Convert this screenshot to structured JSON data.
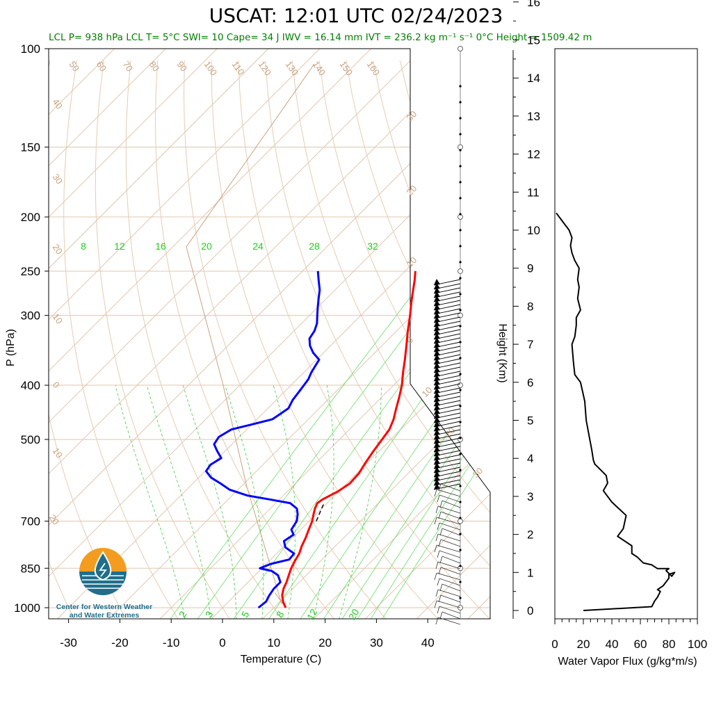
{
  "title": "USCAT: 12:01 UTC 02/24/2023",
  "stats_line": "LCL P= 938 hPa  LCL T= 5°C  SWI= 10  Cape= 34 J  IWV = 16.14 mm  IVT = 236.2 kg m⁻¹ s⁻¹  0°C Height = 1509.42 m",
  "logo": {
    "icon": "water-drop-sun-icon",
    "text_line1": "Center for Western Weather",
    "text_line2": "and Water Extremes",
    "colors": {
      "sun": "#f39c1f",
      "water": "#1f6f8b"
    }
  },
  "chart_data": [
    {
      "type": "skew-t",
      "title": "USCAT: 12:01 UTC 02/24/2023",
      "xlabel": "Temperature (C)",
      "ylabel": "P (hPa)",
      "ylabel_right": "Height (Km)",
      "x_ticks": [
        "-30",
        "-20",
        "-10",
        "0",
        "10",
        "20",
        "30",
        "40"
      ],
      "pressure_ticks": [
        "100",
        "150",
        "200",
        "250",
        "300",
        "400",
        "500",
        "700",
        "850",
        "1000"
      ],
      "height_ticks": [
        "0",
        "1",
        "2",
        "3",
        "4",
        "5",
        "6",
        "7",
        "8",
        "9",
        "10",
        "11",
        "12",
        "13",
        "14",
        "15",
        "16"
      ],
      "mixing_ratio_labels_top": [
        "8",
        "12",
        "16",
        "20",
        "24",
        "28",
        "32"
      ],
      "mixing_ratio_labels_bottom": [
        "2",
        "3",
        "5",
        "8",
        "12",
        "20"
      ],
      "dry_adiabat_labels": [
        "50",
        "60",
        "70",
        "80",
        "90",
        "100",
        "110",
        "120",
        "130",
        "140",
        "150",
        "160"
      ],
      "isotherm_labels_left": [
        "40",
        "30",
        "20",
        "10",
        "0",
        "10",
        "20"
      ],
      "isotherm_labels_right": [
        "30",
        "20",
        "10",
        "0",
        "10",
        "20",
        "30"
      ],
      "colors": {
        "temperature": "#ff0000",
        "dewpoint": "#0000ff",
        "parcel": "#000000",
        "isotherm": "#d8b89a",
        "moist": "#22cc22"
      },
      "temperature_series": {
        "name": "Temperature",
        "points": [
          [
            1000,
            12.3
          ],
          [
            975,
            10.6
          ],
          [
            950,
            9.2
          ],
          [
            925,
            8.2
          ],
          [
            900,
            7.5
          ],
          [
            875,
            6.6
          ],
          [
            850,
            5.7
          ],
          [
            825,
            5.0
          ],
          [
            800,
            4.4
          ],
          [
            775,
            3.4
          ],
          [
            750,
            2.6
          ],
          [
            725,
            1.6
          ],
          [
            700,
            0.6
          ],
          [
            680,
            -0.5
          ],
          [
            665,
            -1.3
          ],
          [
            650,
            -1.9
          ],
          [
            640,
            -1.6
          ],
          [
            620,
            -0.2
          ],
          [
            600,
            0.6
          ],
          [
            575,
            0.4
          ],
          [
            550,
            -0.4
          ],
          [
            525,
            -1.1
          ],
          [
            500,
            -1.7
          ],
          [
            480,
            -2.2
          ],
          [
            460,
            -3.4
          ],
          [
            440,
            -5.0
          ],
          [
            420,
            -6.6
          ],
          [
            400,
            -8.4
          ],
          [
            380,
            -10.6
          ],
          [
            360,
            -12.8
          ],
          [
            340,
            -15.2
          ],
          [
            320,
            -17.8
          ],
          [
            300,
            -20.4
          ],
          [
            285,
            -22.6
          ],
          [
            270,
            -24.8
          ],
          [
            260,
            -26.3
          ],
          [
            250,
            -28.0
          ]
        ]
      },
      "dewpoint_series": {
        "name": "Dewpoint",
        "points": [
          [
            1000,
            7.0
          ],
          [
            975,
            7.3
          ],
          [
            950,
            6.7
          ],
          [
            925,
            6.3
          ],
          [
            900,
            6.3
          ],
          [
            875,
            4.5
          ],
          [
            860,
            2.5
          ],
          [
            850,
            -0.4
          ],
          [
            835,
            0.9
          ],
          [
            820,
            3.6
          ],
          [
            800,
            3.4
          ],
          [
            780,
            0.5
          ],
          [
            760,
            -1.0
          ],
          [
            740,
            -0.4
          ],
          [
            725,
            -1.8
          ],
          [
            700,
            -2.4
          ],
          [
            680,
            -3.6
          ],
          [
            665,
            -4.8
          ],
          [
            650,
            -7.2
          ],
          [
            640,
            -12.0
          ],
          [
            630,
            -17.0
          ],
          [
            615,
            -21.6
          ],
          [
            600,
            -24.5
          ],
          [
            585,
            -27.6
          ],
          [
            570,
            -29.8
          ],
          [
            555,
            -30.2
          ],
          [
            540,
            -29.4
          ],
          [
            525,
            -31.5
          ],
          [
            510,
            -33.5
          ],
          [
            495,
            -34.0
          ],
          [
            480,
            -33.0
          ],
          [
            470,
            -30.0
          ],
          [
            460,
            -27.0
          ],
          [
            450,
            -26.5
          ],
          [
            440,
            -26.0
          ],
          [
            425,
            -26.8
          ],
          [
            410,
            -27.2
          ],
          [
            400,
            -27.5
          ],
          [
            390,
            -27.8
          ],
          [
            380,
            -28.5
          ],
          [
            370,
            -29.0
          ],
          [
            360,
            -29.5
          ],
          [
            350,
            -32.0
          ],
          [
            340,
            -34.0
          ],
          [
            330,
            -35.5
          ],
          [
            320,
            -36.0
          ],
          [
            310,
            -37.0
          ],
          [
            300,
            -38.5
          ],
          [
            290,
            -40.0
          ],
          [
            280,
            -41.5
          ],
          [
            270,
            -43.0
          ],
          [
            260,
            -45.0
          ],
          [
            250,
            -47.0
          ]
        ]
      },
      "parcel_series": {
        "name": "Parcel",
        "points": [
          [
            700,
            1.4
          ],
          [
            665,
            0.0
          ],
          [
            650,
            -0.6
          ]
        ]
      }
    },
    {
      "type": "line",
      "xlabel": "Water Vapor Flux (g/kg*m/s)",
      "x_ticks": [
        "0",
        "20",
        "40",
        "60",
        "80",
        "100"
      ],
      "xlim": [
        0,
        100
      ],
      "ylim": [
        -0.3,
        16.4
      ],
      "color": "#000000",
      "series": {
        "x": [
          20,
          68,
          70,
          72,
          74,
          72,
          76,
          78,
          80,
          80,
          84,
          82,
          78,
          80,
          72,
          68,
          62,
          58,
          54,
          54,
          44,
          48,
          50,
          40,
          36,
          34,
          37,
          36,
          32,
          28,
          27,
          26,
          24,
          22,
          21,
          18,
          14,
          13,
          12,
          14,
          15,
          15,
          18,
          16,
          17,
          16,
          17,
          14,
          12,
          11,
          12,
          10,
          8,
          6,
          4,
          3,
          2,
          1
        ],
        "y": [
          0,
          0.1,
          0.25,
          0.35,
          0.5,
          0.55,
          0.65,
          0.75,
          0.85,
          0.95,
          1.0,
          0.9,
          1.05,
          1.1,
          1.1,
          1.2,
          1.25,
          1.4,
          1.5,
          1.7,
          1.95,
          2.15,
          2.5,
          2.85,
          3.05,
          3.15,
          3.35,
          3.55,
          3.7,
          3.85,
          3.95,
          4.2,
          4.6,
          5.0,
          5.5,
          6.0,
          6.2,
          6.55,
          7.0,
          7.2,
          7.5,
          7.7,
          7.9,
          8.2,
          8.5,
          8.7,
          9.0,
          9.2,
          9.4,
          9.6,
          9.8,
          10.0,
          10.1,
          10.2,
          10.3,
          10.35,
          10.4,
          10.45
        ]
      }
    }
  ]
}
